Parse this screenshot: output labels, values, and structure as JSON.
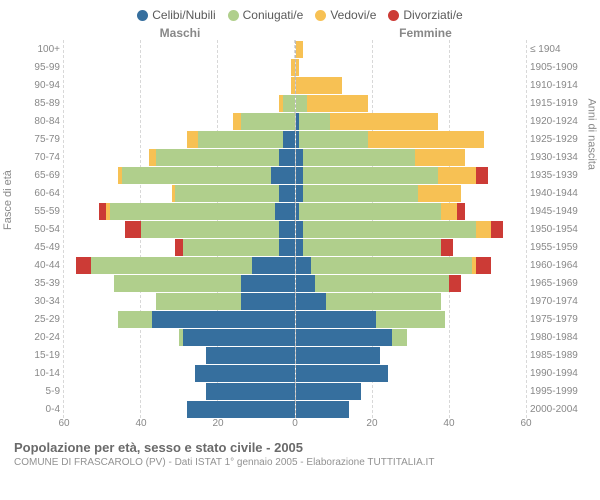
{
  "legend": [
    {
      "label": "Celibi/Nubili",
      "color": "#366f9e"
    },
    {
      "label": "Coniugati/e",
      "color": "#b0cf8c"
    },
    {
      "label": "Vedovi/e",
      "color": "#f7c154"
    },
    {
      "label": "Divorziati/e",
      "color": "#cc3b36"
    }
  ],
  "section_labels": {
    "male": "Maschi",
    "female": "Femmine"
  },
  "axis_titles": {
    "left": "Fasce di età",
    "right": "Anni di nascita"
  },
  "x_axis": {
    "max": 60,
    "ticks": [
      0,
      20,
      40,
      60
    ]
  },
  "footer": {
    "title": "Popolazione per età, sesso e stato civile - 2005",
    "subtitle": "COMUNE DI FRASCAROLO (PV) - Dati ISTAT 1° gennaio 2005 - Elaborazione TUTTITALIA.IT"
  },
  "rows": [
    {
      "age": "100+",
      "birth": "≤ 1904",
      "m": {
        "c": 0,
        "con": 0,
        "w": 0,
        "d": 0
      },
      "f": {
        "c": 0,
        "con": 0,
        "w": 2,
        "d": 0
      }
    },
    {
      "age": "95-99",
      "birth": "1905-1909",
      "m": {
        "c": 0,
        "con": 0,
        "w": 1,
        "d": 0
      },
      "f": {
        "c": 0,
        "con": 0,
        "w": 1,
        "d": 0
      }
    },
    {
      "age": "90-94",
      "birth": "1910-1914",
      "m": {
        "c": 0,
        "con": 0,
        "w": 1,
        "d": 0
      },
      "f": {
        "c": 0,
        "con": 0,
        "w": 12,
        "d": 0
      }
    },
    {
      "age": "85-89",
      "birth": "1915-1919",
      "m": {
        "c": 0,
        "con": 3,
        "w": 1,
        "d": 0
      },
      "f": {
        "c": 0,
        "con": 3,
        "w": 16,
        "d": 0
      }
    },
    {
      "age": "80-84",
      "birth": "1920-1924",
      "m": {
        "c": 0,
        "con": 14,
        "w": 2,
        "d": 0
      },
      "f": {
        "c": 1,
        "con": 8,
        "w": 28,
        "d": 0
      }
    },
    {
      "age": "75-79",
      "birth": "1925-1929",
      "m": {
        "c": 3,
        "con": 22,
        "w": 3,
        "d": 0
      },
      "f": {
        "c": 1,
        "con": 18,
        "w": 30,
        "d": 0
      }
    },
    {
      "age": "70-74",
      "birth": "1930-1934",
      "m": {
        "c": 4,
        "con": 32,
        "w": 2,
        "d": 0
      },
      "f": {
        "c": 2,
        "con": 29,
        "w": 13,
        "d": 0
      }
    },
    {
      "age": "65-69",
      "birth": "1935-1939",
      "m": {
        "c": 6,
        "con": 39,
        "w": 1,
        "d": 0
      },
      "f": {
        "c": 2,
        "con": 35,
        "w": 10,
        "d": 3
      }
    },
    {
      "age": "60-64",
      "birth": "1940-1944",
      "m": {
        "c": 4,
        "con": 27,
        "w": 1,
        "d": 0
      },
      "f": {
        "c": 2,
        "con": 30,
        "w": 11,
        "d": 0
      }
    },
    {
      "age": "55-59",
      "birth": "1945-1949",
      "m": {
        "c": 5,
        "con": 43,
        "w": 1,
        "d": 2
      },
      "f": {
        "c": 1,
        "con": 37,
        "w": 4,
        "d": 2
      }
    },
    {
      "age": "50-54",
      "birth": "1950-1954",
      "m": {
        "c": 4,
        "con": 36,
        "w": 0,
        "d": 4
      },
      "f": {
        "c": 2,
        "con": 45,
        "w": 4,
        "d": 3
      }
    },
    {
      "age": "45-49",
      "birth": "1955-1959",
      "m": {
        "c": 4,
        "con": 25,
        "w": 0,
        "d": 2
      },
      "f": {
        "c": 2,
        "con": 36,
        "w": 0,
        "d": 3
      }
    },
    {
      "age": "40-44",
      "birth": "1960-1964",
      "m": {
        "c": 11,
        "con": 42,
        "w": 0,
        "d": 4
      },
      "f": {
        "c": 4,
        "con": 42,
        "w": 1,
        "d": 4
      }
    },
    {
      "age": "35-39",
      "birth": "1965-1969",
      "m": {
        "c": 14,
        "con": 33,
        "w": 0,
        "d": 0
      },
      "f": {
        "c": 5,
        "con": 35,
        "w": 0,
        "d": 3
      }
    },
    {
      "age": "30-34",
      "birth": "1970-1974",
      "m": {
        "c": 14,
        "con": 22,
        "w": 0,
        "d": 0
      },
      "f": {
        "c": 8,
        "con": 30,
        "w": 0,
        "d": 0
      }
    },
    {
      "age": "25-29",
      "birth": "1975-1979",
      "m": {
        "c": 37,
        "con": 9,
        "w": 0,
        "d": 0
      },
      "f": {
        "c": 21,
        "con": 18,
        "w": 0,
        "d": 0
      }
    },
    {
      "age": "20-24",
      "birth": "1980-1984",
      "m": {
        "c": 29,
        "con": 1,
        "w": 0,
        "d": 0
      },
      "f": {
        "c": 25,
        "con": 4,
        "w": 0,
        "d": 0
      }
    },
    {
      "age": "15-19",
      "birth": "1985-1989",
      "m": {
        "c": 23,
        "con": 0,
        "w": 0,
        "d": 0
      },
      "f": {
        "c": 22,
        "con": 0,
        "w": 0,
        "d": 0
      }
    },
    {
      "age": "10-14",
      "birth": "1990-1994",
      "m": {
        "c": 26,
        "con": 0,
        "w": 0,
        "d": 0
      },
      "f": {
        "c": 24,
        "con": 0,
        "w": 0,
        "d": 0
      }
    },
    {
      "age": "5-9",
      "birth": "1995-1999",
      "m": {
        "c": 23,
        "con": 0,
        "w": 0,
        "d": 0
      },
      "f": {
        "c": 17,
        "con": 0,
        "w": 0,
        "d": 0
      }
    },
    {
      "age": "0-4",
      "birth": "2000-2004",
      "m": {
        "c": 28,
        "con": 0,
        "w": 0,
        "d": 0
      },
      "f": {
        "c": 14,
        "con": 0,
        "w": 0,
        "d": 0
      }
    }
  ],
  "grid_color": "#d8d8d8",
  "bg_color": "#ffffff"
}
